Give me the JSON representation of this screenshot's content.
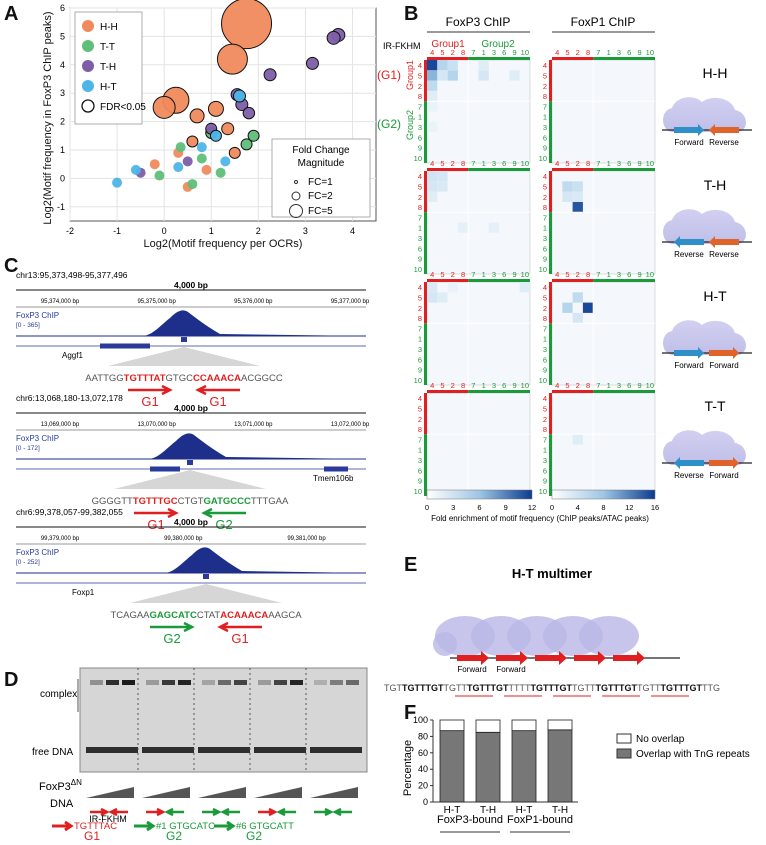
{
  "panels": {
    "A": {
      "letter": "A",
      "ylabel": "Log2(Motif frequency in FoxP3 ChIP peaks)",
      "xlabel": "Log2(Motif frequency per OCRs)",
      "legend": [
        {
          "label": "H-H",
          "color": "#f08a5d"
        },
        {
          "label": "T-T",
          "color": "#5fbf7a"
        },
        {
          "label": "T-H",
          "color": "#7d5ea8"
        },
        {
          "label": "H-T",
          "color": "#4db5e8"
        },
        {
          "label": "FDR<0.05",
          "color": "none"
        }
      ],
      "fc_legend": {
        "title1": "Fold Change",
        "title2": "Magnitude",
        "items": [
          "FC=1",
          "FC=2",
          "FC=5"
        ]
      },
      "chart_data": {
        "type": "scatter",
        "xlim": [
          -2,
          4.5
        ],
        "ylim": [
          -1.5,
          6
        ],
        "xticks": [
          -2,
          -1,
          0,
          1,
          2,
          3,
          4
        ],
        "yticks": [
          -1,
          0,
          1,
          2,
          3,
          4,
          5,
          6
        ],
        "grid": true,
        "series": [
          {
            "name": "H-H",
            "color": "#f08a5d",
            "points": [
              [
                1.75,
                5.45,
                5,
                1
              ],
              [
                1.45,
                4.2,
                3,
                1
              ],
              [
                0.25,
                2.75,
                2.6,
                1
              ],
              [
                0.0,
                2.5,
                2.2,
                1
              ],
              [
                1.1,
                2.45,
                1.5,
                1
              ],
              [
                0.7,
                2.2,
                1.4,
                1
              ],
              [
                1.35,
                1.75,
                1.2,
                1
              ],
              [
                0.6,
                1.3,
                1.1,
                1
              ],
              [
                1.5,
                0.9,
                1.1,
                1
              ],
              [
                0.3,
                0.9,
                1,
                0
              ],
              [
                0.9,
                0.3,
                1,
                0
              ],
              [
                -0.2,
                0.5,
                1,
                0
              ],
              [
                0.5,
                -0.3,
                1,
                0
              ]
            ]
          },
          {
            "name": "T-T",
            "color": "#5fbf7a",
            "points": [
              [
                1.0,
                1.6,
                1.1,
                1
              ],
              [
                0.35,
                1.1,
                1,
                0
              ],
              [
                0.8,
                0.7,
                1,
                0
              ],
              [
                1.75,
                1.2,
                1.1,
                1
              ],
              [
                -0.1,
                0.1,
                1,
                0
              ],
              [
                1.2,
                0.2,
                1,
                0
              ],
              [
                0.6,
                -0.2,
                1,
                0
              ],
              [
                1.9,
                1.5,
                1.1,
                1
              ]
            ]
          },
          {
            "name": "T-H",
            "color": "#7d5ea8",
            "points": [
              [
                3.7,
                5.05,
                1.3,
                1
              ],
              [
                3.6,
                4.95,
                1.3,
                1
              ],
              [
                3.15,
                4.05,
                1.2,
                1
              ],
              [
                2.25,
                3.65,
                1.2,
                1
              ],
              [
                1.55,
                2.95,
                1.2,
                1
              ],
              [
                1.65,
                2.6,
                1.2,
                1
              ],
              [
                1.8,
                2.3,
                1.15,
                1
              ],
              [
                1.0,
                1.75,
                1.1,
                1
              ],
              [
                0.5,
                0.6,
                1,
                0
              ],
              [
                -0.5,
                0.2,
                1,
                0
              ]
            ]
          },
          {
            "name": "H-T",
            "color": "#4db5e8",
            "points": [
              [
                1.6,
                2.9,
                1.2,
                1
              ],
              [
                1.1,
                1.5,
                1.1,
                1
              ],
              [
                0.8,
                1.1,
                1,
                0
              ],
              [
                0.3,
                0.4,
                1,
                0
              ],
              [
                -1.0,
                -0.15,
                1,
                0
              ],
              [
                -0.6,
                0.3,
                1,
                0
              ],
              [
                1.3,
                0.6,
                1,
                0
              ]
            ]
          }
        ]
      }
    },
    "B": {
      "letter": "B",
      "col_titles": [
        "FoxP3 ChIP",
        "FoxP1 ChIP"
      ],
      "ir_label": "IR-FKHM",
      "group1": "Group1",
      "group2": "Group2",
      "g1": "(G1)",
      "g2": "(G2)",
      "motif_labels": [
        "4",
        "5",
        "2",
        "8",
        "7",
        "1",
        "3",
        "6",
        "9",
        "10"
      ],
      "colorbar_ticks": [
        "0",
        "3",
        "6",
        "9",
        "12"
      ],
      "colorbar_ticks2": [
        "0",
        "4",
        "8",
        "12",
        "16"
      ],
      "colorbar_label": "Fold enrichment of motif frequency (ChIP peaks/ATAC peaks)",
      "orientations": [
        {
          "label": "H-H",
          "left": "Forward",
          "right": "Reverse"
        },
        {
          "label": "T-H",
          "left": "Reverse",
          "right": "Reverse"
        },
        {
          "label": "H-T",
          "left": "Forward",
          "right": "Forward"
        },
        {
          "label": "T-T",
          "left": "Reverse",
          "right": "Forward"
        }
      ]
    },
    "C": {
      "letter": "C",
      "scale_label": "4,000 bp",
      "tracks": [
        {
          "locus": "chr13:95,373,498-95,377,496",
          "ticks": [
            "95,374,000 bp",
            "95,375,000 bp",
            "95,376,000 bp",
            "95,377,000 bp"
          ],
          "track": "FoxP3 ChIP",
          "range": "[0 - 365]",
          "gene": "Aggf1",
          "seq_pre": "AATTGG",
          "seq_a": "TGTTTAT",
          "seq_mid": "GTGC",
          "seq_b": "CCAAACA",
          "seq_post": "ACGGCC",
          "lab_a": "G1",
          "lab_b": "G1"
        },
        {
          "locus": "chr6:13,068,180-13,072,178",
          "ticks": [
            "13,069,000 bp",
            "13,070,000 bp",
            "13,071,000 bp",
            "13,072,000 bp"
          ],
          "track": "FoxP3 ChIP",
          "range": "[0 - 172]",
          "gene": "Tmem106b",
          "seq_pre": "GGGGTT",
          "seq_a": "TGTTTGC",
          "seq_mid": "CTGT",
          "seq_b": "GATGCCC",
          "seq_post": "TTTGAA",
          "lab_a": "G1",
          "lab_b": "G2"
        },
        {
          "locus": "chr6:99,378,057-99,382,055",
          "ticks": [
            "99,379,000 bp",
            "99,380,000 bp",
            "99,381,000 bp"
          ],
          "track": "FoxP3 ChIP",
          "range": "[0 - 252]",
          "gene": "Foxp1",
          "seq_pre": "TCAGAA",
          "seq_a": "GAGCATC",
          "seq_mid": "CTAT",
          "seq_b": "ACAAACA",
          "seq_post": "AAGCA",
          "lab_a": "G2",
          "lab_b": "G1"
        }
      ]
    },
    "D": {
      "letter": "D",
      "complex": "complex",
      "free_dna": "free DNA",
      "protein": "FoxP3",
      "protein_sup": "ΔN",
      "dna": "DNA",
      "lane_labels": [
        "IR-FKHM",
        "",
        "",
        "",
        ""
      ],
      "key": [
        {
          "seq": "TGTTTAC",
          "grp": "G1",
          "num": ""
        },
        {
          "seq": "GTGCATC",
          "grp": "G2",
          "num": "#1"
        },
        {
          "seq": "GTGCATT",
          "grp": "G2",
          "num": "#6"
        }
      ]
    },
    "E": {
      "letter": "E",
      "title": "H-T multimer",
      "fwd1": "Forward",
      "fwd2": "Forward",
      "seq_parts": [
        "TGT",
        "TGTTTGT",
        "TGTT",
        "TGTTTGT",
        "TTTT",
        "TGTTTGT",
        "TGTT",
        "TGTTTGT",
        "TGTT",
        "TGTTTGT",
        "TTG"
      ]
    },
    "F": {
      "letter": "F",
      "ylabel": "Percentage",
      "legend": [
        "No overlap",
        "Overlap with TnG repeats"
      ],
      "groups": [
        "FoxP3-bound",
        "FoxP1-bound"
      ],
      "chart_data": {
        "type": "bar",
        "stacked": true,
        "categories": [
          "H-T",
          "T-H",
          "H-T",
          "T-H"
        ],
        "ylim": [
          0,
          100
        ],
        "yticks": [
          0,
          20,
          40,
          60,
          80,
          100
        ],
        "series": [
          {
            "name": "Overlap with TnG repeats",
            "color": "#777777",
            "values": [
              87,
              85,
              87,
              88
            ]
          },
          {
            "name": "No overlap",
            "color": "#ffffff",
            "values": [
              13,
              15,
              13,
              12
            ]
          }
        ]
      }
    }
  }
}
